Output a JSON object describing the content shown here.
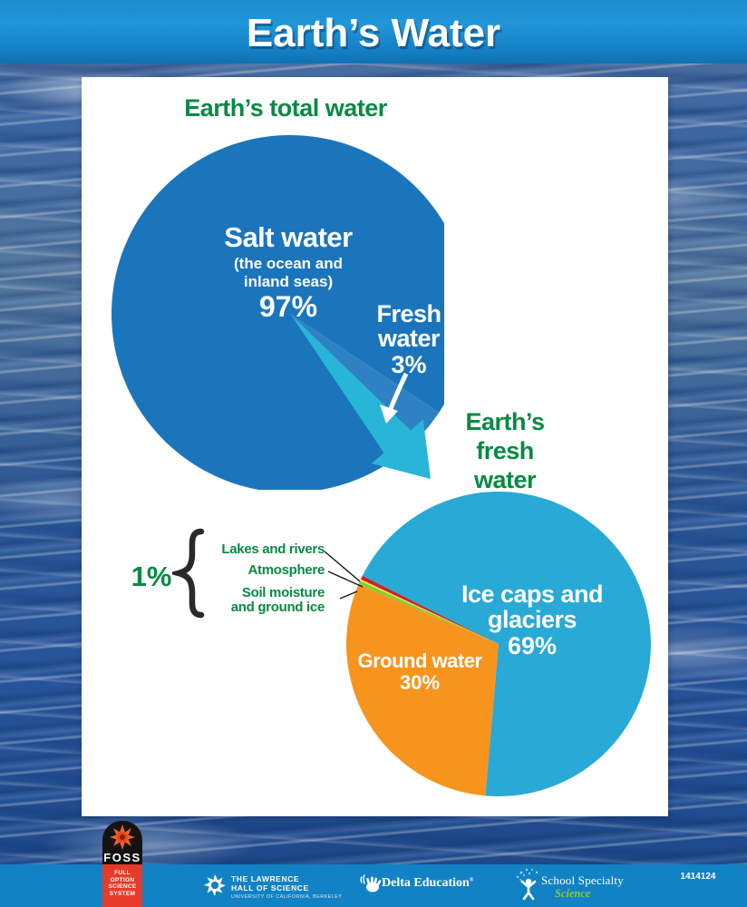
{
  "banner": {
    "title": "Earth’s Water"
  },
  "charts": {
    "total": {
      "heading": "Earth’s total water",
      "salt_label": "Salt water",
      "salt_sub1": "(the ocean and",
      "salt_sub2": "inland seas)",
      "salt_pct": "97%",
      "fresh_line1": "Fresh",
      "fresh_line2": "water",
      "fresh_pct": "3%"
    },
    "fresh": {
      "heading_lines": [
        "Earth’s",
        "fresh",
        "water"
      ],
      "ice_line1": "Ice caps and",
      "ice_line2": "glaciers",
      "ice_pct": "69%",
      "ground_label": "Ground water",
      "ground_pct": "30%",
      "one_pct": "1%",
      "small_labels": [
        "Lakes and rivers",
        "Atmosphere",
        "Soil moisture",
        "and ground ice"
      ]
    }
  },
  "chart_data": [
    {
      "type": "pie",
      "title": "Earth's total water",
      "start_angle_deg": 33.5,
      "slices": [
        {
          "label": "Fresh water",
          "value": 3,
          "color": "#2e82c3"
        },
        {
          "label": "Salt water (the ocean and inland seas)",
          "value": 97,
          "color": "#1b75bc"
        }
      ],
      "annotation": "cyan arrow from fresh-water slice points to the fresh-water pie below"
    },
    {
      "type": "pie",
      "title": "Earth's fresh water",
      "start_angle_deg": 95,
      "slices": [
        {
          "label": "Ground water",
          "value": 30,
          "color": "#f7941e"
        },
        {
          "label": "Soil moisture and ground ice",
          "value": 0.4,
          "color": "#8cc63e"
        },
        {
          "label": "Atmosphere",
          "value": 0.2,
          "color": "#e8e23a"
        },
        {
          "label": "Lakes and rivers",
          "value": 0.4,
          "color": "#cc2127"
        },
        {
          "label": "Ice caps and glaciers",
          "value": 69,
          "color": "#29a9d6"
        }
      ],
      "note": "1% combined = Lakes and rivers + Atmosphere + Soil moisture and ground ice"
    }
  ],
  "footer": {
    "foss": {
      "name": "FOSS",
      "tagline": [
        "FULL",
        "OPTION",
        "SCIENCE",
        "SYSTEM"
      ]
    },
    "lawrence": {
      "line1": "THE LAWRENCE",
      "line2": "HALL OF SCIENCE",
      "line3": "UNIVERSITY OF CALIFORNIA, BERKELEY"
    },
    "delta": {
      "name": "Delta Education",
      "mark": "®"
    },
    "school_specialty": {
      "line1": "School Specialty",
      "line2": "Science"
    },
    "item_number": "1414124"
  }
}
